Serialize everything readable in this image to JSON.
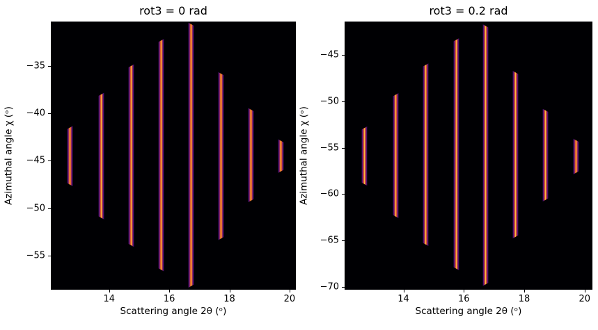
{
  "figure": {
    "background": "#ffffff",
    "plot_background": "#000003",
    "colormap": "inferno"
  },
  "line_gradient": [
    [
      0,
      "#000004"
    ],
    [
      13,
      "#3b0f70"
    ],
    [
      26,
      "#87216b"
    ],
    [
      36,
      "#cf4446"
    ],
    [
      44,
      "#f6810c"
    ],
    [
      50,
      "#fcea69"
    ],
    [
      56,
      "#f6810c"
    ],
    [
      64,
      "#cf4446"
    ],
    [
      74,
      "#87216b"
    ],
    [
      87,
      "#3b0f70"
    ],
    [
      100,
      "#000004"
    ]
  ],
  "chart_data": [
    {
      "type": "heatmap",
      "title": "rot3 = 0 rad",
      "xlabel": "Scattering angle 2θ (ᵒ)",
      "ylabel": "Azimuthal angle χ (ᵒ)",
      "xlim": [
        12.06,
        20.21
      ],
      "ylim": [
        -58.6,
        -30.3
      ],
      "grid": false,
      "legend": null,
      "xticks": [
        {
          "value": 14,
          "label": "14"
        },
        {
          "value": 16,
          "label": "16"
        },
        {
          "value": 18,
          "label": "18"
        },
        {
          "value": 20,
          "label": "20"
        }
      ],
      "yticks": [
        {
          "value": -35,
          "label": "−35"
        },
        {
          "value": -40,
          "label": "−40"
        },
        {
          "value": -45,
          "label": "−45"
        },
        {
          "value": -50,
          "label": "−50"
        },
        {
          "value": -55,
          "label": "−55"
        }
      ],
      "lines": [
        {
          "x": 12.7,
          "chi_top": -41.3,
          "chi_bottom": -47.7,
          "cap": "left"
        },
        {
          "x": 13.74,
          "chi_top": -37.8,
          "chi_bottom": -51.2,
          "cap": "left"
        },
        {
          "x": 14.73,
          "chi_top": -34.8,
          "chi_bottom": -54.1,
          "cap": "left"
        },
        {
          "x": 15.74,
          "chi_top": -32.1,
          "chi_bottom": -56.7,
          "cap": "left"
        },
        {
          "x": 16.73,
          "chi_top": -30.4,
          "chi_bottom": -58.4,
          "cap": "right"
        },
        {
          "x": 17.71,
          "chi_top": -35.6,
          "chi_bottom": -53.4,
          "cap": "right"
        },
        {
          "x": 18.71,
          "chi_top": -39.4,
          "chi_bottom": -49.4,
          "cap": "right"
        },
        {
          "x": 19.71,
          "chi_top": -42.7,
          "chi_bottom": -46.3,
          "cap": "right"
        }
      ]
    },
    {
      "type": "heatmap",
      "title": "rot3 = 0.2 rad",
      "xlabel": "Scattering angle 2θ (ᵒ)",
      "ylabel": "Azimuthal angle χ (ᵒ)",
      "xlim": [
        12.05,
        20.26
      ],
      "ylim": [
        -70.3,
        -41.4
      ],
      "grid": false,
      "legend": null,
      "xticks": [
        {
          "value": 14,
          "label": "14"
        },
        {
          "value": 16,
          "label": "16"
        },
        {
          "value": 18,
          "label": "18"
        },
        {
          "value": 20,
          "label": "20"
        }
      ],
      "yticks": [
        {
          "value": -45,
          "label": "−45"
        },
        {
          "value": -50,
          "label": "−50"
        },
        {
          "value": -55,
          "label": "−55"
        },
        {
          "value": -60,
          "label": "−60"
        },
        {
          "value": -65,
          "label": "−65"
        },
        {
          "value": -70,
          "label": "−70"
        }
      ],
      "lines": [
        {
          "x": 12.7,
          "chi_top": -52.7,
          "chi_bottom": -59.1,
          "cap": "left"
        },
        {
          "x": 13.74,
          "chi_top": -49.1,
          "chi_bottom": -62.6,
          "cap": "left"
        },
        {
          "x": 14.73,
          "chi_top": -45.9,
          "chi_bottom": -65.6,
          "cap": "left"
        },
        {
          "x": 15.74,
          "chi_top": -43.2,
          "chi_bottom": -68.2,
          "cap": "left"
        },
        {
          "x": 16.73,
          "chi_top": -41.7,
          "chi_bottom": -69.9,
          "cap": "right"
        },
        {
          "x": 17.71,
          "chi_top": -46.7,
          "chi_bottom": -64.8,
          "cap": "right"
        },
        {
          "x": 18.71,
          "chi_top": -50.8,
          "chi_bottom": -60.8,
          "cap": "right"
        },
        {
          "x": 19.71,
          "chi_top": -54.0,
          "chi_bottom": -57.9,
          "cap": "right"
        }
      ]
    }
  ]
}
